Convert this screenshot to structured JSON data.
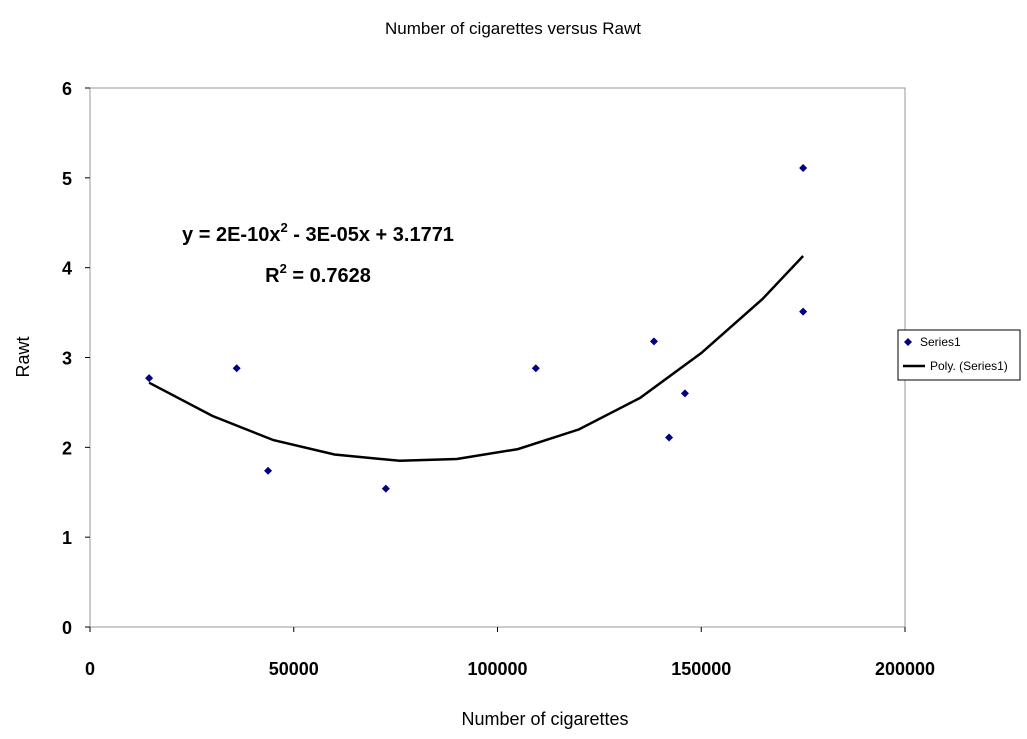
{
  "chart_data": {
    "type": "scatter",
    "title": "Number of cigarettes versus Rawt",
    "x_label": "Number of cigarettes",
    "y_label": "Rawt",
    "xlim": [
      0,
      200000
    ],
    "xticks": [
      0,
      50000,
      100000,
      150000,
      200000
    ],
    "ylim": [
      0,
      6
    ],
    "yticks": [
      0,
      1,
      2,
      3,
      4,
      5,
      6
    ],
    "series": [
      {
        "name": "Series1",
        "color": "#000080",
        "x": [
          14500,
          36000,
          43700,
          72600,
          109400,
          138400,
          142100,
          146000,
          175000,
          175000
        ],
        "values": [
          2.77,
          2.88,
          1.74,
          1.54,
          2.88,
          3.18,
          2.11,
          2.6,
          3.51,
          5.11
        ]
      },
      {
        "name": "Poly. (Series1)",
        "color": "#000000",
        "x": [
          14500,
          30000,
          45000,
          60000,
          76000,
          90000,
          105000,
          120000,
          135000,
          150000,
          165000,
          175000
        ],
        "values": [
          2.72,
          2.35,
          2.08,
          1.92,
          1.85,
          1.87,
          1.98,
          2.2,
          2.55,
          3.05,
          3.65,
          4.13
        ]
      }
    ],
    "trend_equation": [
      "y = 2E-10x",
      "2",
      " - 3E-05x + 3.1771"
    ],
    "trend_r2": [
      "R",
      "2",
      " = 0.7628"
    ]
  }
}
